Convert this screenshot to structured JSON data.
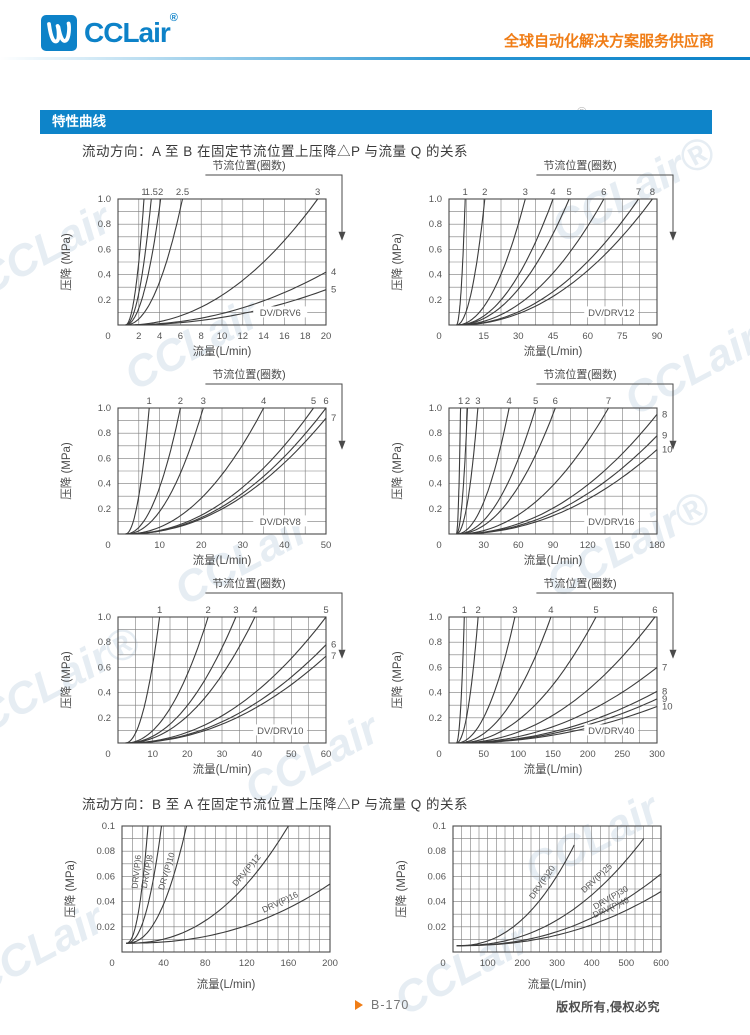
{
  "header": {
    "logo_text": "CCLair",
    "logo_reg": "®",
    "slogan": "全球自动化解决方案服务供应商"
  },
  "section_bar": {
    "title": "特性曲线"
  },
  "sections": [
    {
      "heading": "流动方向：A 至 B 在固定节流位置上压降△P 与流量 Q 的关系"
    },
    {
      "heading": "流动方向：B 至 A 在固定节流位置上压降△P 与流量 Q 的关系"
    }
  ],
  "footer": {
    "page": "B-170",
    "copyright": "版权所有,侵权必究"
  },
  "watermark": {
    "text": "CCLair",
    "text_reg": "CCLair®",
    "reg": "®"
  },
  "colors": {
    "brand_blue": "#0d82c8",
    "bar_blue": "#0e84c9",
    "orange": "#f07d16",
    "curve": "#3c3c3c",
    "grid": "#7d7d7d",
    "chart_text": "#555555"
  },
  "chart_data": [
    {
      "type": "line",
      "model": "DV/DRV6",
      "throttle_title": "节流位置(圈数)",
      "xlabel": "流量(L/min)",
      "ylabel": "压降 (MPa)",
      "xlim": [
        0,
        20
      ],
      "ylim": [
        0,
        1.0
      ],
      "grid_x": 10,
      "grid_y": 10,
      "xticks": [
        0,
        2,
        4,
        6,
        8,
        10,
        12,
        14,
        16,
        18,
        20
      ],
      "xtick_labels": [
        "0",
        "2",
        "4",
        "6",
        "8",
        "10",
        "12",
        "14",
        "16",
        "18",
        "20"
      ],
      "yticks": [
        0.2,
        0.4,
        0.6,
        0.8,
        1.0
      ],
      "ytick_labels": [
        "0.2",
        "0.4",
        "0.6",
        "0.8",
        "1.0"
      ],
      "curves": [
        {
          "label": "1",
          "end": [
            2.5,
            1.0
          ],
          "side": "top"
        },
        {
          "label": "1.5",
          "end": [
            3.2,
            1.0
          ],
          "side": "top"
        },
        {
          "label": "2",
          "end": [
            4.1,
            1.0
          ],
          "side": "top"
        },
        {
          "label": "2.5",
          "end": [
            6.2,
            1.0
          ],
          "side": "top"
        },
        {
          "label": "3",
          "end": [
            19.2,
            1.0
          ],
          "side": "top"
        },
        {
          "label": "4",
          "end": [
            20,
            0.42
          ],
          "side": "right"
        },
        {
          "label": "5",
          "end": [
            20,
            0.28
          ],
          "side": "right"
        }
      ]
    },
    {
      "type": "line",
      "model": "DV/DRV12",
      "throttle_title": "节流位置(圈数)",
      "xlabel": "流量(L/min)",
      "ylabel": "压降 (MPa)",
      "xlim": [
        0,
        90
      ],
      "ylim": [
        0,
        1.0
      ],
      "grid_x": 12,
      "grid_y": 10,
      "xticks": [
        0,
        15,
        30,
        45,
        60,
        75,
        90
      ],
      "xtick_labels": [
        "0",
        "15",
        "30",
        "45",
        "60",
        "75",
        "90"
      ],
      "yticks": [
        0.2,
        0.4,
        0.6,
        0.8,
        1.0
      ],
      "ytick_labels": [
        "0.2",
        "0.4",
        "0.6",
        "0.8",
        "1.0"
      ],
      "curves": [
        {
          "label": "1",
          "end": [
            7,
            1.0
          ],
          "side": "top"
        },
        {
          "label": "2",
          "end": [
            15.5,
            1.0
          ],
          "side": "top"
        },
        {
          "label": "3",
          "end": [
            33,
            1.0
          ],
          "side": "top"
        },
        {
          "label": "4",
          "end": [
            45,
            1.0
          ],
          "side": "top"
        },
        {
          "label": "5",
          "end": [
            52,
            1.0
          ],
          "side": "top"
        },
        {
          "label": "6",
          "end": [
            67,
            1.0
          ],
          "side": "top"
        },
        {
          "label": "7",
          "end": [
            82,
            1.0
          ],
          "side": "top"
        },
        {
          "label": "8",
          "end": [
            88,
            1.0
          ],
          "side": "top"
        }
      ]
    },
    {
      "type": "line",
      "model": "DV/DRV8",
      "throttle_title": "节流位置(圈数)",
      "xlabel": "流量(L/min)",
      "ylabel": "压降 (MPa)",
      "xlim": [
        0,
        50
      ],
      "ylim": [
        0,
        1.0
      ],
      "grid_x": 10,
      "grid_y": 10,
      "xticks": [
        0,
        10,
        20,
        30,
        40,
        50
      ],
      "xtick_labels": [
        "0",
        "10",
        "20",
        "30",
        "40",
        "50"
      ],
      "yticks": [
        0.2,
        0.4,
        0.6,
        0.8,
        1.0
      ],
      "ytick_labels": [
        "0.2",
        "0.4",
        "0.6",
        "0.8",
        "1.0"
      ],
      "curves": [
        {
          "label": "1",
          "end": [
            7.5,
            1.0
          ],
          "side": "top"
        },
        {
          "label": "2",
          "end": [
            15,
            1.0
          ],
          "side": "top"
        },
        {
          "label": "3",
          "end": [
            20.5,
            1.0
          ],
          "side": "top"
        },
        {
          "label": "4",
          "end": [
            35,
            1.0
          ],
          "side": "top"
        },
        {
          "label": "5",
          "end": [
            47,
            1.0
          ],
          "side": "top"
        },
        {
          "label": "6",
          "end": [
            50,
            1.0
          ],
          "side": "top"
        },
        {
          "label": "7",
          "end": [
            50,
            0.92
          ],
          "side": "right"
        }
      ]
    },
    {
      "type": "line",
      "model": "DV/DRV16",
      "throttle_title": "节流位置(圈数)",
      "xlabel": "流量(L/min)",
      "ylabel": "压降 (MPa)",
      "xlim": [
        0,
        180
      ],
      "ylim": [
        0,
        1.0
      ],
      "grid_x": 12,
      "grid_y": 10,
      "xticks": [
        0,
        30,
        60,
        90,
        120,
        150,
        180
      ],
      "xtick_labels": [
        "0",
        "30",
        "60",
        "90",
        "120",
        "150",
        "180"
      ],
      "yticks": [
        0.2,
        0.4,
        0.6,
        0.8,
        1.0
      ],
      "ytick_labels": [
        "0.2",
        "0.4",
        "0.6",
        "0.8",
        "1.0"
      ],
      "curves": [
        {
          "label": "1",
          "end": [
            10,
            1.0
          ],
          "side": "top"
        },
        {
          "label": "2",
          "end": [
            16,
            1.0
          ],
          "side": "top"
        },
        {
          "label": "3",
          "end": [
            25,
            1.0
          ],
          "side": "top"
        },
        {
          "label": "4",
          "end": [
            52,
            1.0
          ],
          "side": "top"
        },
        {
          "label": "5",
          "end": [
            75,
            1.0
          ],
          "side": "top"
        },
        {
          "label": "6",
          "end": [
            92,
            1.0
          ],
          "side": "top"
        },
        {
          "label": "7",
          "end": [
            138,
            1.0
          ],
          "side": "top"
        },
        {
          "label": "8",
          "end": [
            180,
            0.95
          ],
          "side": "right"
        },
        {
          "label": "9",
          "end": [
            180,
            0.78
          ],
          "side": "right"
        },
        {
          "label": "10",
          "end": [
            180,
            0.67
          ],
          "side": "right"
        }
      ]
    },
    {
      "type": "line",
      "model": "DV/DRV10",
      "throttle_title": "节流位置(圈数)",
      "xlabel": "流量(L/min)",
      "ylabel": "压降 (MPa)",
      "xlim": [
        0,
        60
      ],
      "ylim": [
        0,
        1.0
      ],
      "grid_x": 12,
      "grid_y": 10,
      "xticks": [
        0,
        10,
        20,
        30,
        40,
        50,
        60
      ],
      "xtick_labels": [
        "0",
        "10",
        "20",
        "30",
        "40",
        "50",
        "60"
      ],
      "yticks": [
        0.2,
        0.4,
        0.6,
        0.8,
        1.0
      ],
      "ytick_labels": [
        "0.2",
        "0.4",
        "0.6",
        "0.8",
        "1.0"
      ],
      "curves": [
        {
          "label": "1",
          "end": [
            12,
            1.0
          ],
          "side": "top"
        },
        {
          "label": "2",
          "end": [
            26,
            1.0
          ],
          "side": "top"
        },
        {
          "label": "3",
          "end": [
            34,
            1.0
          ],
          "side": "top"
        },
        {
          "label": "4",
          "end": [
            39.5,
            1.0
          ],
          "side": "top"
        },
        {
          "label": "5",
          "end": [
            60,
            1.0
          ],
          "side": "top"
        },
        {
          "label": "6",
          "end": [
            60,
            0.78
          ],
          "side": "right"
        },
        {
          "label": "7",
          "end": [
            60,
            0.69
          ],
          "side": "right"
        }
      ]
    },
    {
      "type": "line",
      "model": "DV/DRV40",
      "throttle_title": "节流位置(圈数)",
      "xlabel": "流量(L/min)",
      "ylabel": "压降 (MPa)",
      "xlim": [
        0,
        300
      ],
      "ylim": [
        0,
        1.0
      ],
      "grid_x": 12,
      "grid_y": 10,
      "xticks": [
        0,
        50,
        100,
        150,
        200,
        250,
        300
      ],
      "xtick_labels": [
        "0",
        "50",
        "100",
        "150",
        "200",
        "250",
        "300"
      ],
      "yticks": [
        0.2,
        0.4,
        0.6,
        0.8,
        1.0
      ],
      "ytick_labels": [
        "0.2",
        "0.4",
        "0.6",
        "0.8",
        "1.0"
      ],
      "curves": [
        {
          "label": "1",
          "end": [
            22,
            1.0
          ],
          "side": "top"
        },
        {
          "label": "2",
          "end": [
            42,
            1.0
          ],
          "side": "top"
        },
        {
          "label": "3",
          "end": [
            95,
            1.0
          ],
          "side": "top"
        },
        {
          "label": "4",
          "end": [
            147,
            1.0
          ],
          "side": "top"
        },
        {
          "label": "5",
          "end": [
            212,
            1.0
          ],
          "side": "top"
        },
        {
          "label": "6",
          "end": [
            297,
            1.0
          ],
          "side": "top"
        },
        {
          "label": "7",
          "end": [
            300,
            0.6
          ],
          "side": "right"
        },
        {
          "label": "8",
          "end": [
            300,
            0.41
          ],
          "side": "right"
        },
        {
          "label": "9",
          "end": [
            300,
            0.35
          ],
          "side": "right"
        },
        {
          "label": "10",
          "end": [
            300,
            0.29
          ],
          "side": "right"
        }
      ]
    },
    {
      "type": "line",
      "xlabel": "流量(L/min)",
      "ylabel": "压降 (MPa)",
      "xlim": [
        0,
        200
      ],
      "ylim": [
        0,
        0.1
      ],
      "grid_x": 20,
      "grid_y": 10,
      "x_base": 4,
      "y_base": 0.007,
      "xticks": [
        0,
        40,
        80,
        120,
        160,
        200
      ],
      "xtick_labels": [
        "0",
        "40",
        "80",
        "120",
        "160",
        "200"
      ],
      "yticks": [
        0.02,
        0.04,
        0.06,
        0.08,
        0.1
      ],
      "ytick_labels": [
        "0.02",
        "0.04",
        "0.06",
        "0.08",
        "0.1"
      ],
      "curves": [
        {
          "label": "DRV(P)6",
          "end": [
            25,
            0.1
          ],
          "side": "along"
        },
        {
          "label": "DRV(P)8",
          "end": [
            38,
            0.1
          ],
          "side": "along"
        },
        {
          "label": "DRV(P)10",
          "end": [
            62,
            0.1
          ],
          "side": "along"
        },
        {
          "label": "DRV(P)12",
          "end": [
            160,
            0.1
          ],
          "side": "along"
        },
        {
          "label": "DRV(P)16",
          "end": [
            200,
            0.054
          ],
          "side": "along"
        }
      ]
    },
    {
      "type": "line",
      "xlabel": "流量(L/min)",
      "ylabel": "压降 (MPa)",
      "xlim": [
        0,
        600
      ],
      "ylim": [
        0,
        0.1
      ],
      "grid_x": 24,
      "grid_y": 10,
      "x_base": 10,
      "y_base": 0.005,
      "xticks": [
        0,
        100,
        200,
        300,
        400,
        500,
        600
      ],
      "xtick_labels": [
        "0",
        "100",
        "200",
        "300",
        "400",
        "500",
        "600"
      ],
      "yticks": [
        0.02,
        0.04,
        0.06,
        0.08,
        0.1
      ],
      "ytick_labels": [
        "0.02",
        "0.04",
        "0.06",
        "0.08",
        "0.1"
      ],
      "curves": [
        {
          "label": "DRV(P)20",
          "end": [
            350,
            0.085
          ],
          "side": "along"
        },
        {
          "label": "DRV(P)25",
          "end": [
            550,
            0.09
          ],
          "side": "along"
        },
        {
          "label": "DRV(P)30",
          "end": [
            600,
            0.062
          ],
          "side": "along"
        },
        {
          "label": "DRV(P)40",
          "end": [
            600,
            0.048
          ],
          "side": "along"
        }
      ]
    }
  ]
}
